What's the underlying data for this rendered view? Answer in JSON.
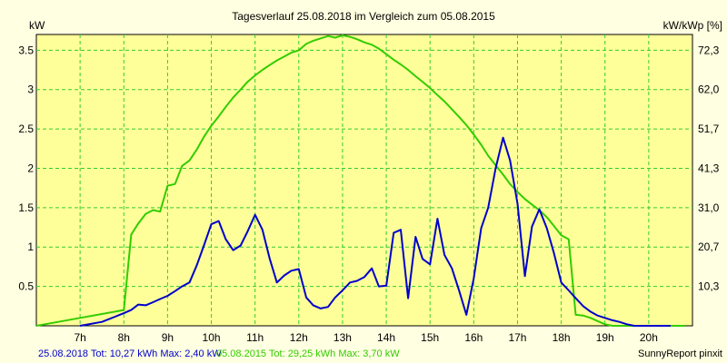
{
  "chart_data": {
    "type": "line",
    "title": "Tagesverlauf 25.08.2018 im Vergleich zum 05.08.2015",
    "ylabel_left": "kW",
    "ylabel_right": "kW/kWp [%]",
    "xlim": [
      6.0,
      21.0
    ],
    "ylim": [
      0,
      3.7
    ],
    "x_ticks": [
      7,
      8,
      9,
      10,
      11,
      12,
      13,
      14,
      15,
      16,
      17,
      18,
      19,
      20
    ],
    "x_tick_labels": [
      "7h",
      "8h",
      "9h",
      "10h",
      "11h",
      "12h",
      "13h",
      "14h",
      "15h",
      "16h",
      "17h",
      "18h",
      "19h",
      "20h"
    ],
    "y_ticks": [
      0.5,
      1,
      1.5,
      2,
      2.5,
      3,
      3.5
    ],
    "y_tick_labels": [
      "0.5",
      "1",
      "1.5",
      "2",
      "2.5",
      "3",
      "3.5"
    ],
    "y2_ticks": [
      0.5,
      1.0,
      1.5,
      2.0,
      2.5,
      3.0,
      3.5
    ],
    "y2_tick_labels": [
      "10,3",
      "20,7",
      "31,0",
      "41,3",
      "51,7",
      "62,0",
      "72,3"
    ],
    "grid": true,
    "colors": {
      "background": "#ffffe1",
      "plot_area": "#ffff99",
      "grid": "#33cc33"
    },
    "series": [
      {
        "name": "25.08.2018",
        "color": "#0000cc",
        "x": [
          7.0,
          7.5,
          8.0,
          8.17,
          8.33,
          8.5,
          8.67,
          8.83,
          9.0,
          9.17,
          9.33,
          9.5,
          9.67,
          9.83,
          10.0,
          10.17,
          10.33,
          10.5,
          10.67,
          10.83,
          11.0,
          11.17,
          11.33,
          11.5,
          11.67,
          11.83,
          12.0,
          12.17,
          12.33,
          12.5,
          12.67,
          12.83,
          13.0,
          13.17,
          13.33,
          13.5,
          13.67,
          13.83,
          14.0,
          14.17,
          14.33,
          14.5,
          14.67,
          14.83,
          15.0,
          15.17,
          15.33,
          15.5,
          15.67,
          15.83,
          16.0,
          16.17,
          16.33,
          16.5,
          16.67,
          16.83,
          17.0,
          17.17,
          17.33,
          17.5,
          17.67,
          17.83,
          18.0,
          18.17,
          18.33,
          18.5,
          18.67,
          18.83,
          19.0,
          19.17,
          19.33,
          19.5,
          19.67,
          19.83,
          20.0,
          20.17,
          20.33,
          20.5
        ],
        "values": [
          0.0,
          0.05,
          0.16,
          0.2,
          0.27,
          0.26,
          0.3,
          0.34,
          0.38,
          0.44,
          0.5,
          0.55,
          0.77,
          1.02,
          1.29,
          1.33,
          1.1,
          0.96,
          1.02,
          1.2,
          1.41,
          1.22,
          0.86,
          0.55,
          0.64,
          0.7,
          0.72,
          0.36,
          0.26,
          0.22,
          0.24,
          0.36,
          0.45,
          0.55,
          0.57,
          0.62,
          0.73,
          0.5,
          0.51,
          1.18,
          1.22,
          0.35,
          1.13,
          0.85,
          0.78,
          1.36,
          0.9,
          0.73,
          0.44,
          0.14,
          0.6,
          1.24,
          1.5,
          2.0,
          2.39,
          2.1,
          1.55,
          0.63,
          1.26,
          1.48,
          1.24,
          0.93,
          0.55,
          0.45,
          0.35,
          0.25,
          0.18,
          0.13,
          0.1,
          0.07,
          0.05,
          0.02,
          0.0,
          0.0,
          0.0,
          0.0,
          0.0,
          0.0
        ]
      },
      {
        "name": "05.08.2015",
        "color": "#33cc00",
        "x": [
          6.0,
          6.5,
          7.0,
          7.5,
          8.0,
          8.17,
          8.33,
          8.5,
          8.67,
          8.83,
          9.0,
          9.17,
          9.33,
          9.5,
          9.67,
          9.83,
          10.0,
          10.17,
          10.33,
          10.5,
          10.67,
          10.83,
          11.0,
          11.17,
          11.33,
          11.5,
          11.67,
          11.83,
          12.0,
          12.17,
          12.33,
          12.5,
          12.67,
          12.83,
          13.0,
          13.17,
          13.33,
          13.5,
          13.67,
          13.83,
          14.0,
          14.17,
          14.33,
          14.5,
          14.67,
          14.83,
          15.0,
          15.17,
          15.33,
          15.5,
          15.67,
          15.83,
          16.0,
          16.17,
          16.33,
          16.5,
          16.67,
          16.83,
          17.0,
          17.17,
          17.33,
          17.5,
          17.67,
          17.83,
          18.0,
          18.17,
          18.33,
          18.5,
          18.67,
          18.83,
          19.0,
          19.17,
          19.33,
          19.5,
          19.67,
          19.83,
          20.0,
          20.17,
          20.33,
          20.5,
          20.67,
          20.83
        ],
        "values": [
          0.0,
          0.05,
          0.1,
          0.15,
          0.2,
          1.16,
          1.3,
          1.42,
          1.47,
          1.45,
          1.78,
          1.8,
          2.03,
          2.1,
          2.24,
          2.4,
          2.54,
          2.66,
          2.78,
          2.9,
          3.0,
          3.1,
          3.18,
          3.25,
          3.31,
          3.37,
          3.42,
          3.47,
          3.5,
          3.58,
          3.62,
          3.65,
          3.68,
          3.66,
          3.69,
          3.67,
          3.64,
          3.6,
          3.57,
          3.52,
          3.45,
          3.38,
          3.32,
          3.25,
          3.17,
          3.1,
          3.02,
          2.93,
          2.85,
          2.75,
          2.65,
          2.55,
          2.43,
          2.3,
          2.16,
          2.04,
          1.92,
          1.8,
          1.7,
          1.61,
          1.54,
          1.47,
          1.38,
          1.27,
          1.15,
          1.1,
          0.14,
          0.13,
          0.1,
          0.06,
          0.02,
          0.0,
          0.0,
          0.0,
          0.0,
          0.0,
          0.0,
          0.0,
          0.0,
          0.0,
          0.0,
          0.0
        ]
      }
    ]
  },
  "footer": {
    "series1_text": "25.08.2018 Tot: 10,27 kWh Max: 2,40 kW",
    "series2_text": "05.08.2015 Tot: 29,25 kWh Max: 3,70 kW",
    "credit": "SunnyReport pinxit"
  }
}
